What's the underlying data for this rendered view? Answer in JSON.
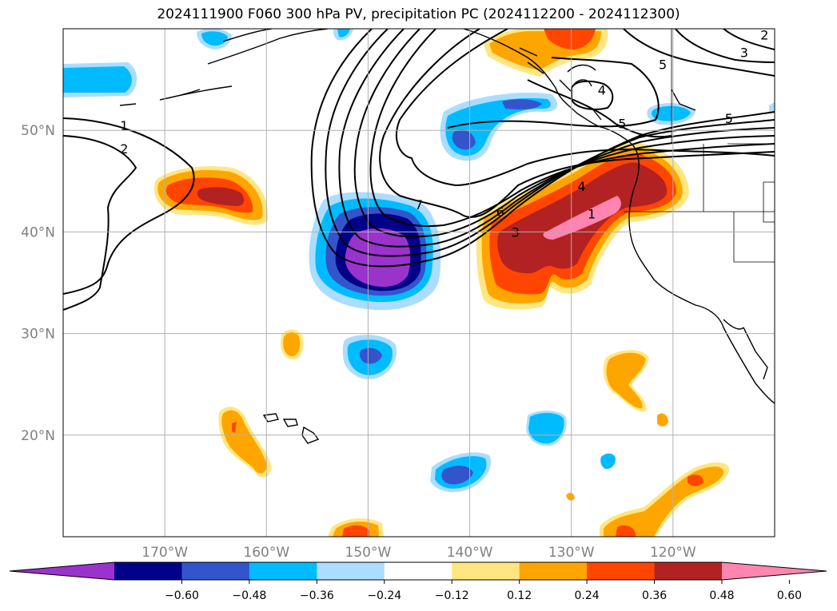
{
  "title": "2024111900 F060 300 hPa PV, precipitation PC (2024112200 - 2024112300)",
  "map": {
    "lon_range": [
      -180,
      -110
    ],
    "lat_range": [
      10,
      60
    ],
    "lat_ticks": [
      {
        "value": 50,
        "label": "50°N"
      },
      {
        "value": 40,
        "label": "40°N"
      },
      {
        "value": 30,
        "label": "30°N"
      },
      {
        "value": 20,
        "label": "20°N"
      }
    ],
    "lon_ticks": [
      {
        "value": -170,
        "label": "170°W"
      },
      {
        "value": -160,
        "label": "160°W"
      },
      {
        "value": -150,
        "label": "150°W"
      },
      {
        "value": -140,
        "label": "140°W"
      },
      {
        "value": -130,
        "label": "130°W"
      },
      {
        "value": -120,
        "label": "120°W"
      }
    ],
    "grid": true
  },
  "pv_contour_labels": [
    {
      "text": "1",
      "lon": -174,
      "lat": 50.5
    },
    {
      "text": "2",
      "lon": -174,
      "lat": 48.2
    },
    {
      "text": "7",
      "lon": -145,
      "lat": 42.7
    },
    {
      "text": "6",
      "lon": -137,
      "lat": 42
    },
    {
      "text": "3",
      "lon": -135.5,
      "lat": 40
    },
    {
      "text": "4",
      "lon": -129,
      "lat": 44.5
    },
    {
      "text": "1",
      "lon": -128,
      "lat": 41.8
    },
    {
      "text": "4",
      "lon": -127,
      "lat": 54
    },
    {
      "text": "5",
      "lon": -125,
      "lat": 50.7
    },
    {
      "text": "5",
      "lon": -121,
      "lat": 56.5
    },
    {
      "text": "5",
      "lon": -114.5,
      "lat": 51.2
    },
    {
      "text": "3",
      "lon": -113,
      "lat": 57.7
    },
    {
      "text": "2",
      "lon": -111,
      "lat": 59.4
    }
  ],
  "colorbar": {
    "ticks": [
      "−0.60",
      "−0.48",
      "−0.36",
      "−0.24",
      "−0.12",
      "0.12",
      "0.24",
      "0.36",
      "0.48",
      "0.60"
    ],
    "colors": [
      "#9933cc",
      "#000088",
      "#3355cc",
      "#00bbff",
      "#aaddff",
      "#ffffff",
      "#ffe680",
      "#ffa500",
      "#ff4500",
      "#b22222",
      "#ff85b0"
    ],
    "extend": "both"
  }
}
